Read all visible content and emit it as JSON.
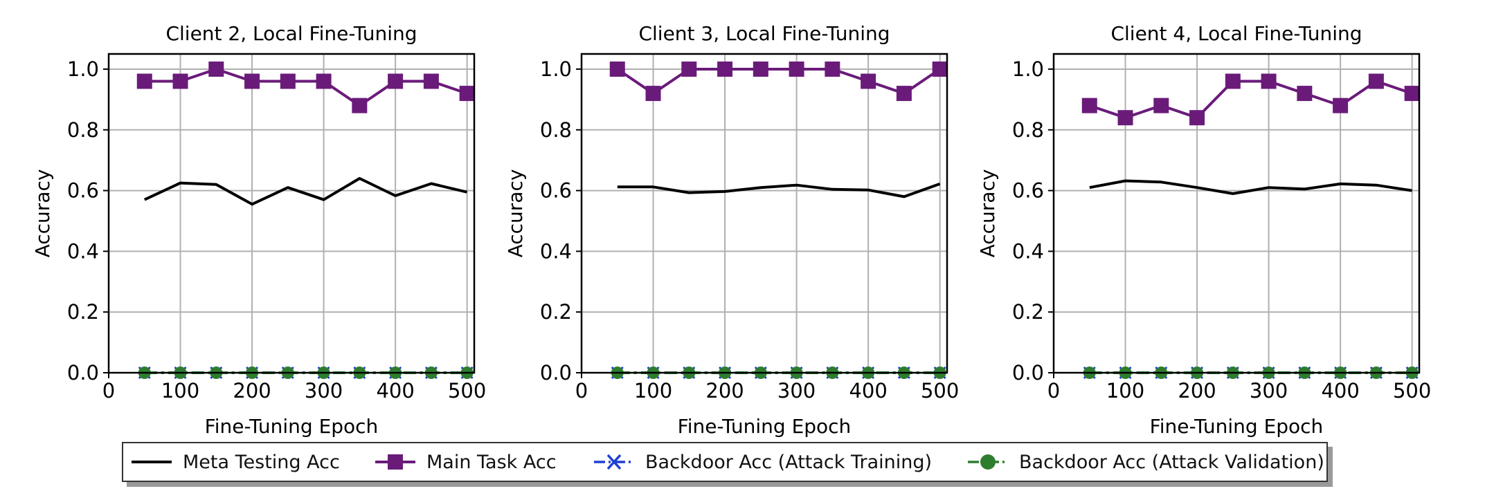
{
  "chart_data": [
    {
      "type": "line",
      "title": "Client 2, Local Fine-Tuning",
      "xlabel": "Fine-Tuning Epoch",
      "ylabel": "Accuracy",
      "xlim": [
        0,
        510
      ],
      "ylim": [
        0,
        1.05
      ],
      "x_ticks": [
        0,
        100,
        200,
        300,
        400,
        500
      ],
      "y_ticks": [
        "0.0",
        "0.2",
        "0.4",
        "0.6",
        "0.8",
        "1.0"
      ],
      "grid": true,
      "x": [
        50,
        100,
        150,
        200,
        250,
        300,
        350,
        400,
        450,
        500
      ],
      "series": [
        {
          "name": "Meta Testing Acc",
          "values": [
            0.57,
            0.625,
            0.62,
            0.555,
            0.61,
            0.57,
            0.64,
            0.583,
            0.623,
            0.595
          ]
        },
        {
          "name": "Main Task Acc",
          "values": [
            0.96,
            0.96,
            1.0,
            0.96,
            0.96,
            0.96,
            0.88,
            0.96,
            0.96,
            0.92
          ]
        },
        {
          "name": "Backdoor Acc (Attack Training)",
          "values": [
            0,
            0,
            0,
            0,
            0,
            0,
            0,
            0,
            0,
            0
          ]
        },
        {
          "name": "Backdoor Acc (Attack Validation)",
          "values": [
            0,
            0,
            0,
            0,
            0,
            0,
            0,
            0,
            0,
            0
          ]
        }
      ]
    },
    {
      "type": "line",
      "title": "Client 3, Local Fine-Tuning",
      "xlabel": "Fine-Tuning Epoch",
      "ylabel": "Accuracy",
      "xlim": [
        0,
        510
      ],
      "ylim": [
        0,
        1.05
      ],
      "x_ticks": [
        0,
        100,
        200,
        300,
        400,
        500
      ],
      "y_ticks": [
        "0.0",
        "0.2",
        "0.4",
        "0.6",
        "0.8",
        "1.0"
      ],
      "grid": true,
      "x": [
        50,
        100,
        150,
        200,
        250,
        300,
        350,
        400,
        450,
        500
      ],
      "series": [
        {
          "name": "Meta Testing Acc",
          "values": [
            0.612,
            0.612,
            0.593,
            0.597,
            0.61,
            0.618,
            0.604,
            0.602,
            0.58,
            0.622
          ]
        },
        {
          "name": "Main Task Acc",
          "values": [
            1.0,
            0.92,
            1.0,
            1.0,
            1.0,
            1.0,
            1.0,
            0.96,
            0.92,
            1.0
          ]
        },
        {
          "name": "Backdoor Acc (Attack Training)",
          "values": [
            0,
            0,
            0,
            0,
            0,
            0,
            0,
            0,
            0,
            0
          ]
        },
        {
          "name": "Backdoor Acc (Attack Validation)",
          "values": [
            0,
            0,
            0,
            0,
            0,
            0,
            0,
            0,
            0,
            0
          ]
        }
      ]
    },
    {
      "type": "line",
      "title": "Client 4, Local Fine-Tuning",
      "xlabel": "Fine-Tuning Epoch",
      "ylabel": "Accuracy",
      "xlim": [
        0,
        510
      ],
      "ylim": [
        0,
        1.05
      ],
      "x_ticks": [
        0,
        100,
        200,
        300,
        400,
        500
      ],
      "y_ticks": [
        "0.0",
        "0.2",
        "0.4",
        "0.6",
        "0.8",
        "1.0"
      ],
      "grid": true,
      "x": [
        50,
        100,
        150,
        200,
        250,
        300,
        350,
        400,
        450,
        500
      ],
      "series": [
        {
          "name": "Meta Testing Acc",
          "values": [
            0.61,
            0.632,
            0.628,
            0.61,
            0.59,
            0.61,
            0.605,
            0.622,
            0.618,
            0.6
          ]
        },
        {
          "name": "Main Task Acc",
          "values": [
            0.88,
            0.84,
            0.88,
            0.84,
            0.96,
            0.96,
            0.92,
            0.88,
            0.96,
            0.92
          ]
        },
        {
          "name": "Backdoor Acc (Attack Training)",
          "values": [
            0,
            0,
            0,
            0,
            0,
            0,
            0,
            0,
            0,
            0
          ]
        },
        {
          "name": "Backdoor Acc (Attack Validation)",
          "values": [
            0,
            0,
            0,
            0,
            0,
            0,
            0,
            0,
            0,
            0
          ]
        }
      ]
    }
  ],
  "series_styles": [
    {
      "color": "#000000",
      "marker": "none",
      "dash": "solid"
    },
    {
      "color": "#6a1b7a",
      "marker": "square",
      "dash": "solid"
    },
    {
      "color": "#1f3fd1",
      "marker": "x",
      "dash": "dashdot"
    },
    {
      "color": "#2e7d2e",
      "marker": "circle",
      "dash": "dashdot"
    }
  ],
  "legend": {
    "position": "bottom-center",
    "items": [
      {
        "label": "Meta Testing Acc"
      },
      {
        "label": "Main Task Acc"
      },
      {
        "label": "Backdoor Acc (Attack Training)"
      },
      {
        "label": "Backdoor Acc (Attack Validation)"
      }
    ]
  }
}
